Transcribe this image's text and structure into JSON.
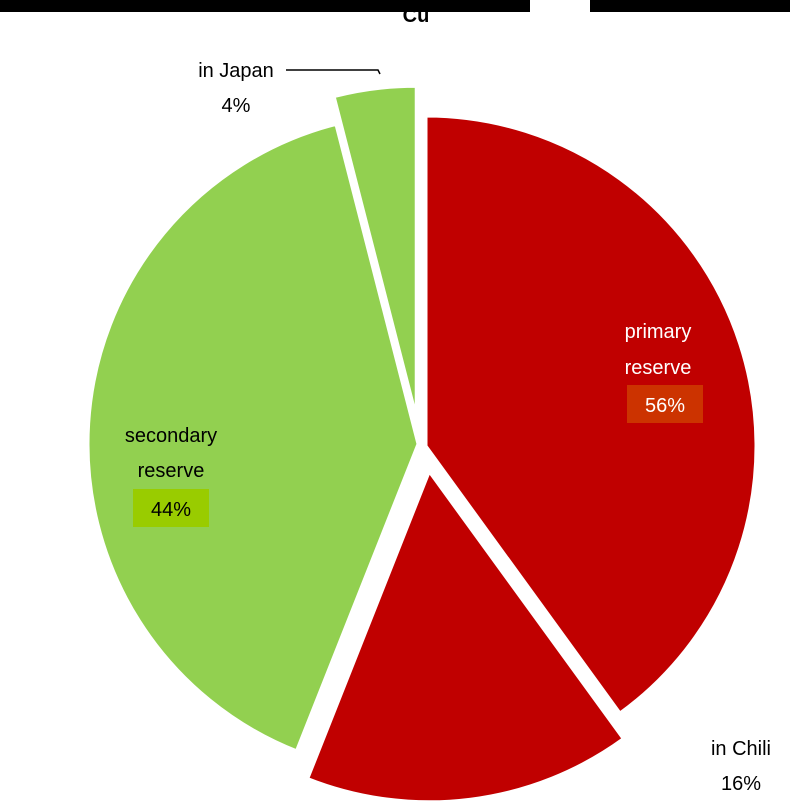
{
  "chart_data": {
    "type": "pie",
    "title_fragment": "Cu",
    "slices": [
      {
        "label": "primary reserve",
        "label_lines": [
          "primary",
          "reserve"
        ],
        "percent": 56,
        "color": "#c00000",
        "label_color": "#ffffff",
        "badge_color": "#cc3300"
      },
      {
        "label": "secondary reserve",
        "label_lines": [
          "secondary",
          "reserve"
        ],
        "percent": 44,
        "color": "#92d050",
        "label_color": "#000000",
        "badge_color": "#99cc00"
      }
    ],
    "exploded_slices": [
      {
        "label": "in Chili",
        "percent": 16,
        "color": "#c00000"
      },
      {
        "label": "in Japan",
        "percent": 4,
        "color": "#92d050"
      }
    ],
    "percent_suffix": "%"
  }
}
